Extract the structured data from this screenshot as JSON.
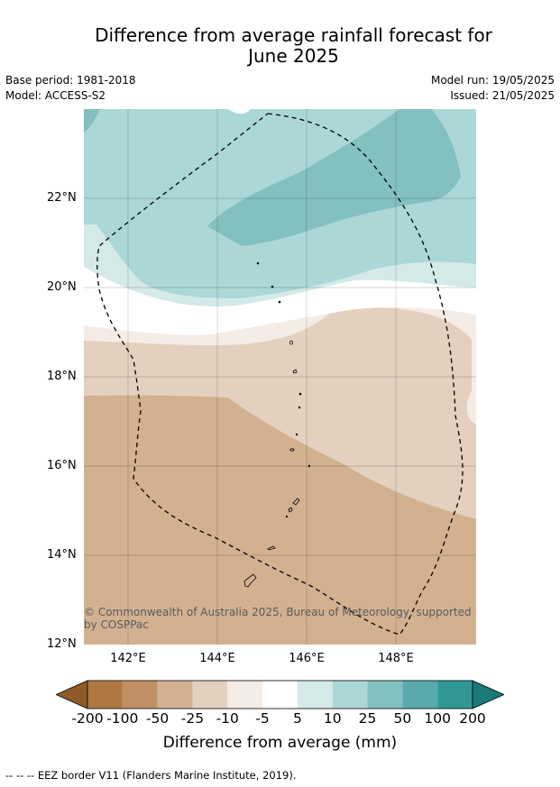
{
  "title_line1": "Difference from average rainfall forecast for",
  "title_line2": "June 2025",
  "meta": {
    "base_period": "Base period: 1981-2018",
    "model": "Model: ACCESS-S2",
    "model_run": "Model run: 19/05/2025",
    "issued": "Issued: 21/05/2025"
  },
  "map": {
    "y_ticks": [
      "22°N",
      "20°N",
      "18°N",
      "16°N",
      "14°N",
      "12°N"
    ],
    "x_ticks": [
      "142°E",
      "144°E",
      "146°E",
      "148°E"
    ],
    "copyright": "© Commonwealth of Australia 2025, Bureau of Meteorology, supported by COSPPac"
  },
  "colorbar": {
    "labels": [
      "-200",
      "-100",
      "-50",
      "-25",
      "-10",
      "-5",
      "5",
      "10",
      "25",
      "50",
      "100",
      "200"
    ],
    "colors": [
      "#8f5a2a",
      "#b07841",
      "#c09064",
      "#d2b191",
      "#e4d0be",
      "#f5ece6",
      "#ffffff",
      "#d4eae9",
      "#acd7d7",
      "#83c0c0",
      "#58aaad",
      "#2f9896",
      "#1b7978"
    ],
    "title": "Difference from average (mm)"
  },
  "footnote": "--  --  -- EEZ border V11 (Flanders Marine Institute, 2019)."
}
